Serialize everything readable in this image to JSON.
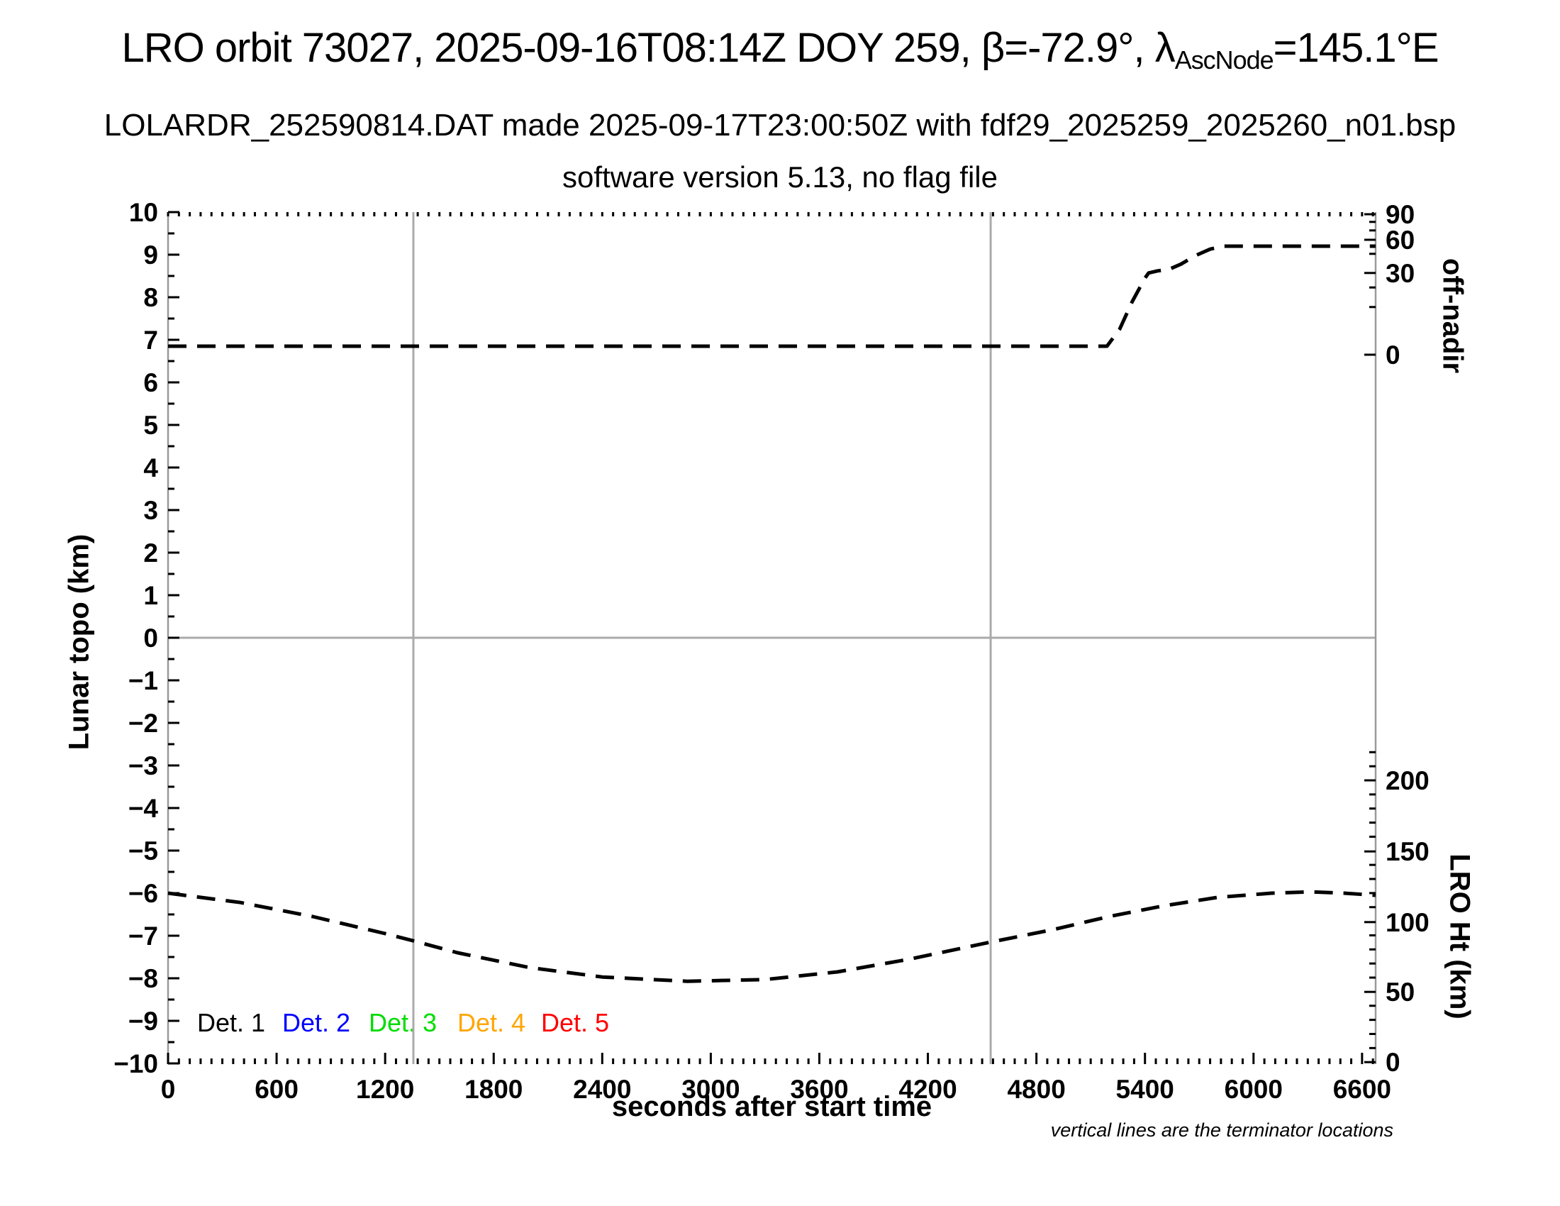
{
  "header": {
    "title_part1": "LRO orbit 73027, 2025-09-16T08:14Z DOY 259, β=-72.9°, λ",
    "title_subscript": "AscNode",
    "title_part2": "=145.1°E",
    "subtitle1": "LOLARDR_252590814.DAT made 2025-09-17T23:00:50Z with fdf29_2025259_2025260_n01.bsp",
    "subtitle2": "software version 5.13, no flag file"
  },
  "axis_labels": {
    "left": "Lunar topo (km)",
    "right_top": "off-nadir",
    "right_bottom": "LRO Ht (km)",
    "bottom": "seconds after start time"
  },
  "footnote": "vertical lines are the terminator locations",
  "legend": {
    "items": [
      {
        "label": "Det. 1",
        "color": "#000000",
        "x": 278
      },
      {
        "label": "Det. 2",
        "color": "#0000ff",
        "x": 398
      },
      {
        "label": "Det. 3",
        "color": "#00dd00",
        "x": 520
      },
      {
        "label": "Det. 4",
        "color": "#ffa500",
        "x": 645
      },
      {
        "label": "Det. 5",
        "color": "#ff0000",
        "x": 763
      }
    ]
  },
  "colors": {
    "curve": "#000000",
    "spine": "#999999",
    "reference_line": "#aaaaaa",
    "tick": "#000000"
  },
  "chart_data": {
    "type": "line",
    "title": "LRO orbit 73027, 2025-09-16T08:14Z DOY 259, beta=-72.9deg, lambda_AscNode=145.1degE",
    "xlabel": "seconds after start time",
    "xlim": [
      0,
      6675
    ],
    "x_major_tick_step": 600,
    "x_minor_tick_step": 60,
    "x_major_tick_labels": [
      0,
      600,
      1200,
      1800,
      2400,
      3000,
      3600,
      4200,
      4800,
      5400,
      6000,
      6600
    ],
    "ylabel_left": "Lunar topo (km)",
    "ylim_left": [
      -10,
      10
    ],
    "y_left_major_tick_step": 1,
    "y_left_minor_tick_step": 0.5,
    "grid": "off",
    "legend_position": "inside bottom-left",
    "right_axis_top": {
      "label": "off-nadir",
      "tick_values_deg": [
        90,
        60,
        30,
        0
      ],
      "tick_pos_left_units": [
        9.95,
        9.35,
        8.57,
        6.65
      ],
      "minor_tick_pos_left_units": [
        9.77,
        9.57,
        9.02,
        8.23,
        7.77
      ],
      "note": "nonlinear angle scale on right upper axis"
    },
    "right_axis_bottom": {
      "label": "LRO Ht (km)",
      "tick_values_km": [
        200,
        150,
        100,
        50,
        0
      ],
      "tick_pos_left_units": [
        -3.35,
        -5.02,
        -6.68,
        -8.32,
        -9.97
      ],
      "minor_tick_step_km": 10,
      "minor_tick_range_km": [
        10,
        220
      ],
      "km_to_left_units_slope": 0.0331,
      "km_to_left_units_intercept": -9.97
    },
    "zero_line_left_units": 0,
    "terminator_lines_x": [
      1356,
      4547
    ],
    "series": [
      {
        "name": "off-nadir angle",
        "axis": "right_top",
        "style": "dashed",
        "color": "#000000",
        "x": [
          0,
          2000,
          4000,
          5190,
          5260,
          5330,
          5400,
          5420,
          5470,
          5530,
          5600,
          5680,
          5760,
          5835,
          6200,
          6675
        ],
        "y_left_units": [
          6.85,
          6.85,
          6.85,
          6.85,
          7.25,
          7.9,
          8.45,
          8.57,
          8.62,
          8.65,
          8.78,
          8.98,
          9.13,
          9.2,
          9.2,
          9.2
        ],
        "y_offnadir_deg_approx": [
          3,
          3,
          3,
          3,
          9,
          22,
          38,
          42,
          43,
          44,
          46,
          48,
          49,
          50,
          50,
          50
        ]
      },
      {
        "name": "LRO height",
        "axis": "right_bottom",
        "style": "dashed",
        "color": "#000000",
        "x": [
          0,
          400,
          800,
          1200,
          1356,
          1600,
          2000,
          2400,
          2870,
          3300,
          3700,
          4100,
          4547,
          4900,
          5200,
          5500,
          5800,
          6100,
          6320,
          6500,
          6675
        ],
        "y_left_units": [
          -6.0,
          -6.22,
          -6.55,
          -6.95,
          -7.12,
          -7.4,
          -7.75,
          -7.97,
          -8.07,
          -8.03,
          -7.85,
          -7.55,
          -7.15,
          -6.85,
          -6.55,
          -6.3,
          -6.1,
          -6.0,
          -5.97,
          -6.0,
          -6.05
        ],
        "y_lro_ht_km_approx": [
          120,
          113,
          104,
          92,
          86,
          78,
          68,
          61,
          58,
          59,
          64,
          73,
          86,
          95,
          104,
          111,
          117,
          120,
          121,
          120,
          119
        ]
      }
    ]
  }
}
